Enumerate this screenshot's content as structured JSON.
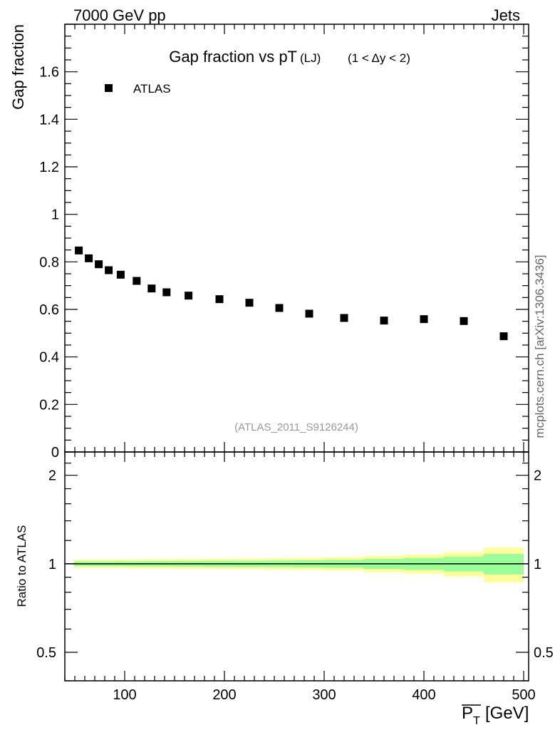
{
  "header": {
    "left": "7000 GeV pp",
    "right": "Jets"
  },
  "side_note": "mcplots.cern.ch [arXiv:1306.3436]",
  "chart_data": [
    {
      "type": "scatter",
      "title": "Gap fraction vs pT",
      "title_suffix_lj": "(LJ)",
      "title_suffix_range": "(1 < Δy < 2)",
      "ylabel": "Gap fraction",
      "watermark": "(ATLAS_2011_S9126244)",
      "legend": {
        "placement": "top-left",
        "entries": [
          "ATLAS"
        ]
      },
      "xlim": [
        40,
        505
      ],
      "ylim": [
        0,
        1.8
      ],
      "x_ticks": [
        100,
        200,
        300,
        400,
        500
      ],
      "y_tick_labels": [
        "0",
        "0.2",
        "0.4",
        "0.6",
        "0.8",
        "1",
        "1.2",
        "1.4",
        "1.6"
      ],
      "series": [
        {
          "name": "ATLAS",
          "color": "#000000",
          "x": [
            54,
            64,
            74,
            84,
            96,
            112,
            127,
            142,
            164,
            195,
            225,
            255,
            285,
            320,
            360,
            400,
            440,
            480
          ],
          "y": [
            0.848,
            0.815,
            0.79,
            0.765,
            0.746,
            0.72,
            0.688,
            0.672,
            0.658,
            0.643,
            0.628,
            0.606,
            0.582,
            0.564,
            0.553,
            0.559,
            0.551,
            0.487
          ]
        }
      ]
    },
    {
      "type": "area",
      "ylabel": "Ratio to ATLAS",
      "xlabel": "P",
      "xlabel_sub": "T",
      "xlabel_unit": "[GeV]",
      "xlim": [
        40,
        505
      ],
      "ylim": [
        0.4,
        2.4
      ],
      "y_scale": "log",
      "x_tick_labels": [
        "100",
        "200",
        "300",
        "400",
        "500"
      ],
      "y_tick_labels": [
        "0.5",
        "1",
        "2"
      ],
      "y_ticks": [
        0.5,
        1,
        2
      ],
      "reference_line": 1,
      "bands": {
        "x_edges": [
          49,
          59,
          69,
          79,
          89,
          103,
          120,
          134,
          150,
          180,
          210,
          240,
          270,
          300,
          340,
          380,
          420,
          460,
          500
        ],
        "yellow_color": "#ffff99",
        "green_color": "#99ff99",
        "yellow_half_width": [
          0.032,
          0.032,
          0.033,
          0.034,
          0.035,
          0.036,
          0.037,
          0.038,
          0.039,
          0.04,
          0.042,
          0.045,
          0.048,
          0.052,
          0.065,
          0.075,
          0.095,
          0.135
        ],
        "green_half_width": [
          0.018,
          0.018,
          0.019,
          0.019,
          0.02,
          0.02,
          0.021,
          0.021,
          0.022,
          0.023,
          0.024,
          0.026,
          0.028,
          0.031,
          0.04,
          0.046,
          0.058,
          0.08
        ]
      }
    }
  ]
}
